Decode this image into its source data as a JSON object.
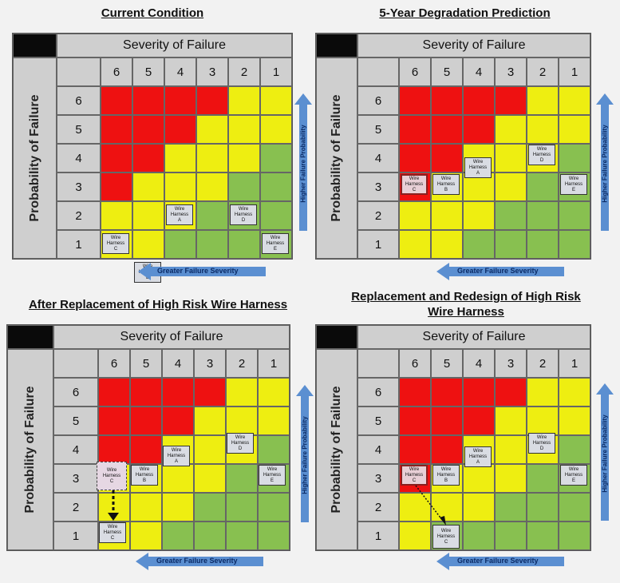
{
  "panels": [
    {
      "title": "Current Condition",
      "severity_label": "Severity of Failure",
      "probability_label": "Probability of Failure",
      "severity_values": [
        "6",
        "5",
        "4",
        "3",
        "2",
        "1"
      ],
      "probability_values": [
        "6",
        "5",
        "4",
        "3",
        "2",
        "1"
      ],
      "items": [
        {
          "line1": "Wire",
          "line2": "Harness",
          "id": "A"
        },
        {
          "line1": "Wire",
          "line2": "Harness",
          "id": "B"
        },
        {
          "line1": "Wire",
          "line2": "Harness",
          "id": "C"
        },
        {
          "line1": "Wire",
          "line2": "Harness",
          "id": "D"
        },
        {
          "line1": "Wire",
          "line2": "Harness",
          "id": "E"
        }
      ],
      "vertical_arrow": "Higher Failure Probability",
      "horizontal_arrow": "Greater Failure Severity"
    },
    {
      "title": "5-Year Degradation Prediction",
      "severity_label": "Severity of Failure",
      "probability_label": "Probability of Failure",
      "severity_values": [
        "6",
        "5",
        "4",
        "3",
        "2",
        "1"
      ],
      "probability_values": [
        "6",
        "5",
        "4",
        "3",
        "2",
        "1"
      ],
      "items": [
        {
          "line1": "Wire",
          "line2": "Harness",
          "id": "A"
        },
        {
          "line1": "Wire",
          "line2": "Harness",
          "id": "B"
        },
        {
          "line1": "Wire",
          "line2": "Harness",
          "id": "C"
        },
        {
          "line1": "Wire",
          "line2": "Harness",
          "id": "D"
        },
        {
          "line1": "Wire",
          "line2": "Harness",
          "id": "E"
        }
      ],
      "vertical_arrow": "Higher Failure Probability",
      "horizontal_arrow": "Greater Failure Severity"
    },
    {
      "title": "After Replacement of High Risk Wire Harness",
      "severity_label": "Severity of Failure",
      "probability_label": "Probability of Failure",
      "severity_values": [
        "6",
        "5",
        "4",
        "3",
        "2",
        "1"
      ],
      "probability_values": [
        "6",
        "5",
        "4",
        "3",
        "2",
        "1"
      ],
      "items": [
        {
          "line1": "Wire",
          "line2": "Harness",
          "id": "A"
        },
        {
          "line1": "Wire",
          "line2": "Harness",
          "id": "B"
        },
        {
          "line1": "Wire",
          "line2": "Harness",
          "id": "C"
        },
        {
          "line1": "Wire",
          "line2": "Harness",
          "id": "D"
        },
        {
          "line1": "Wire",
          "line2": "Harness",
          "id": "E"
        },
        {
          "line1": "Wire",
          "line2": "Harness",
          "id": "C"
        }
      ],
      "vertical_arrow": "Higher Failure Probability",
      "horizontal_arrow": "Greater Failure Severity"
    },
    {
      "title": "Replacement and Redesign of High Risk Wire Harness",
      "severity_label": "Severity of Failure",
      "probability_label": "Probability of Failure",
      "severity_values": [
        "6",
        "5",
        "4",
        "3",
        "2",
        "1"
      ],
      "probability_values": [
        "6",
        "5",
        "4",
        "3",
        "2",
        "1"
      ],
      "items": [
        {
          "line1": "Wire",
          "line2": "Harness",
          "id": "A"
        },
        {
          "line1": "Wire",
          "line2": "Harness",
          "id": "B"
        },
        {
          "line1": "Wire",
          "line2": "Harness",
          "id": "C"
        },
        {
          "line1": "Wire",
          "line2": "Harness",
          "id": "D"
        },
        {
          "line1": "Wire",
          "line2": "Harness",
          "id": "E"
        },
        {
          "line1": "Wire",
          "line2": "Harness",
          "id": "C"
        }
      ],
      "vertical_arrow": "Higher Failure Probability",
      "horizontal_arrow": "Greater Failure Severity"
    }
  ],
  "colors": {
    "high_risk": "#ee1111",
    "medium_risk": "#eeee11",
    "low_risk": "#88c050",
    "arrow": "#5b8fd1"
  }
}
